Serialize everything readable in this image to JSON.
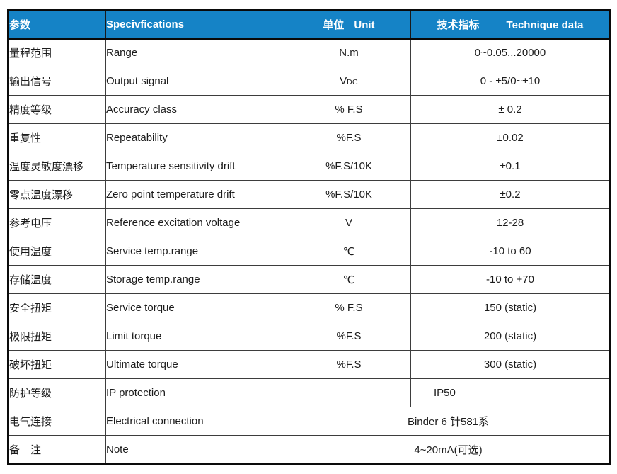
{
  "header": {
    "param_zh": "参数",
    "spec": "Specivfications",
    "unit_zh": "单位",
    "unit_en": "Unit",
    "tech_zh": "技术指标",
    "tech_en": "Technique data"
  },
  "colors": {
    "header_bg": "#1583c6",
    "header_text": "#ffffff",
    "outer_border": "#0a0a0a",
    "inner_border": "#3d3d3d",
    "body_text": "#1c1c1c"
  },
  "rows": [
    {
      "zh": "量程范围",
      "en": "Range",
      "unit": "N.m",
      "value": "0~0.05...20000"
    },
    {
      "zh": "输出信号",
      "en": "Output signal",
      "unit": "V",
      "unit_sub": "DC",
      "value": "0 - ±5/0~±10"
    },
    {
      "zh": "精度等级",
      "en": "Accuracy class",
      "unit": "% F.S",
      "value": "± 0.2"
    },
    {
      "zh": "重复性",
      "en": "Repeatability",
      "unit": "%F.S",
      "value": "±0.02"
    },
    {
      "zh": "温度灵敏度漂移",
      "en": "Temperature sensitivity drift",
      "unit": "%F.S/10K",
      "value": "±0.1"
    },
    {
      "zh": "零点温度漂移",
      "en": "Zero point temperature drift",
      "unit": "%F.S/10K",
      "value": "±0.2"
    },
    {
      "zh": "参考电压",
      "en": "Reference excitation voltage",
      "unit": "V",
      "value": "12-28"
    },
    {
      "zh": "使用温度",
      "en": "Service temp.range",
      "unit": "℃",
      "value": "-10 to 60"
    },
    {
      "zh": "存储温度",
      "en": "Storage temp.range",
      "unit": "℃",
      "value": "-10 to +70"
    },
    {
      "zh": "安全扭矩",
      "en": "Service torque",
      "unit": "% F.S",
      "value": "150 (static)"
    },
    {
      "zh": "极限扭矩",
      "en": "Limit torque",
      "unit": "%F.S",
      "value": "200 (static)"
    },
    {
      "zh": "破坏扭矩",
      "en": "Ultimate torque",
      "unit": "%F.S",
      "value": "300 (static)"
    },
    {
      "zh": "防护等级",
      "en": "IP protection",
      "unit": "",
      "value": "IP50",
      "value_align": "left"
    },
    {
      "zh": "电气连接",
      "en": "Electrical connection",
      "merged_value": "Binder 6 针581系"
    },
    {
      "zh": "备　注",
      "en": "Note",
      "merged_value": "4~20mA(可选)"
    }
  ]
}
